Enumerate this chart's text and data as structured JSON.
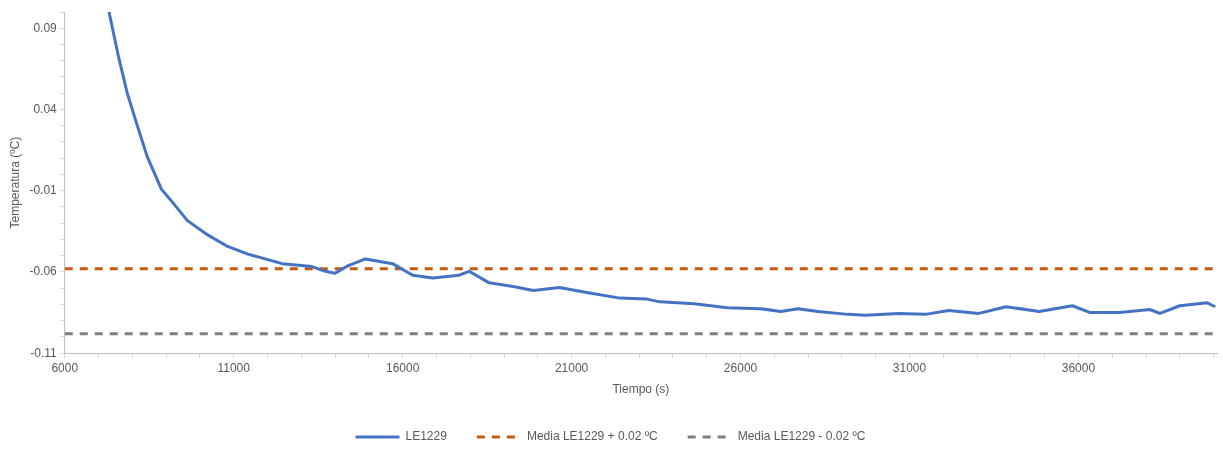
{
  "chart_data": {
    "type": "line",
    "xlabel": "Tiempo (s)",
    "ylabel": "Temperatura (ºC)",
    "xlim": [
      6000,
      40100
    ],
    "xticks": [
      6000,
      {
        "value": 7000,
        "label": null
      },
      {
        "value": 8000,
        "label": null
      },
      {
        "value": 9000,
        "label": null
      },
      {
        "value": 10000,
        "label": null
      },
      11000,
      {
        "value": 12000,
        "label": null
      },
      {
        "value": 13000,
        "label": null
      },
      {
        "value": 14000,
        "label": null
      },
      {
        "value": 15000,
        "label": null
      },
      16000,
      {
        "value": 17000,
        "label": null
      },
      {
        "value": 18000,
        "label": null
      },
      {
        "value": 19000,
        "label": null
      },
      {
        "value": 20000,
        "label": null
      },
      21000,
      {
        "value": 22000,
        "label": null
      },
      {
        "value": 23000,
        "label": null
      },
      {
        "value": 24000,
        "label": null
      },
      {
        "value": 25000,
        "label": null
      },
      26000,
      {
        "value": 27000,
        "label": null
      },
      {
        "value": 28000,
        "label": null
      },
      {
        "value": 29000,
        "label": null
      },
      {
        "value": 30000,
        "label": null
      },
      31000,
      {
        "value": 32000,
        "label": null
      },
      {
        "value": 33000,
        "label": null
      },
      {
        "value": 34000,
        "label": null
      },
      {
        "value": 35000,
        "label": null
      },
      36000,
      {
        "value": 37000,
        "label": null
      },
      {
        "value": 38000,
        "label": null
      },
      {
        "value": 39000,
        "label": null
      },
      {
        "value": 40000,
        "label": null
      }
    ],
    "ylim": [
      -0.11,
      0.1
    ],
    "yticks": [
      -0.11,
      {
        "value": -0.1,
        "label": null
      },
      {
        "value": -0.09,
        "label": null
      },
      {
        "value": -0.08,
        "label": null
      },
      {
        "value": -0.07,
        "label": null
      },
      -0.06,
      {
        "value": -0.05,
        "label": null
      },
      {
        "value": -0.04,
        "label": null
      },
      {
        "value": -0.03,
        "label": null
      },
      {
        "value": -0.02,
        "label": null
      },
      -0.01,
      {
        "value": 0,
        "label": null
      },
      {
        "value": 0.01,
        "label": null
      },
      {
        "value": 0.02,
        "label": null
      },
      {
        "value": 0.03,
        "label": null
      },
      0.04,
      {
        "value": 0.05,
        "label": null
      },
      {
        "value": 0.06,
        "label": null
      },
      {
        "value": 0.07,
        "label": null
      },
      {
        "value": 0.08,
        "label": null
      },
      0.09,
      {
        "value": 0.1,
        "label": null
      }
    ],
    "grid": false,
    "legend": "bottom",
    "marker": "none",
    "series": [
      {
        "name": "LE1229",
        "color": "#4472c4",
        "line_style": "solid",
        "x": [
          7310,
          7580,
          7850,
          8140,
          8440,
          8860,
          9240,
          9630,
          10230,
          10820,
          11420,
          12430,
          13320,
          13710,
          14000,
          14390,
          14900,
          15700,
          16300,
          16890,
          17670,
          17970,
          18560,
          19270,
          19870,
          20640,
          21450,
          22430,
          23230,
          23620,
          24630,
          25610,
          26590,
          27190,
          27700,
          28290,
          29180,
          29690,
          30670,
          31470,
          32160,
          33050,
          33860,
          34840,
          35820,
          36330,
          37220,
          38110,
          38410,
          39000,
          39810,
          40050
        ],
        "values": [
          0.1,
          0.0735,
          0.05,
          0.0305,
          0.011,
          -0.009,
          -0.0184,
          -0.0284,
          -0.0372,
          -0.0443,
          -0.049,
          -0.0549,
          -0.0567,
          -0.0596,
          -0.0608,
          -0.0561,
          -0.052,
          -0.0549,
          -0.062,
          -0.0637,
          -0.062,
          -0.0596,
          -0.0667,
          -0.069,
          -0.0714,
          -0.0696,
          -0.0726,
          -0.0761,
          -0.0767,
          -0.0784,
          -0.0796,
          -0.082,
          -0.0826,
          -0.0843,
          -0.0826,
          -0.0843,
          -0.0861,
          -0.0867,
          -0.0855,
          -0.0861,
          -0.0837,
          -0.0855,
          -0.0814,
          -0.0843,
          -0.0808,
          -0.0849,
          -0.0849,
          -0.0831,
          -0.0855,
          -0.0808,
          -0.079,
          -0.0814
        ]
      },
      {
        "name": "Media LE1229 + 0.02 ºC",
        "color": "#c55a11",
        "line_style": "dashed",
        "x": [
          6000,
          40100
        ],
        "values": [
          -0.058,
          -0.058
        ]
      },
      {
        "name": "Media LE1229 - 0.02 ºC",
        "color": "#7f7f7f",
        "line_style": "dashed",
        "x": [
          6000,
          40100
        ],
        "values": [
          -0.098,
          -0.098
        ]
      }
    ]
  }
}
